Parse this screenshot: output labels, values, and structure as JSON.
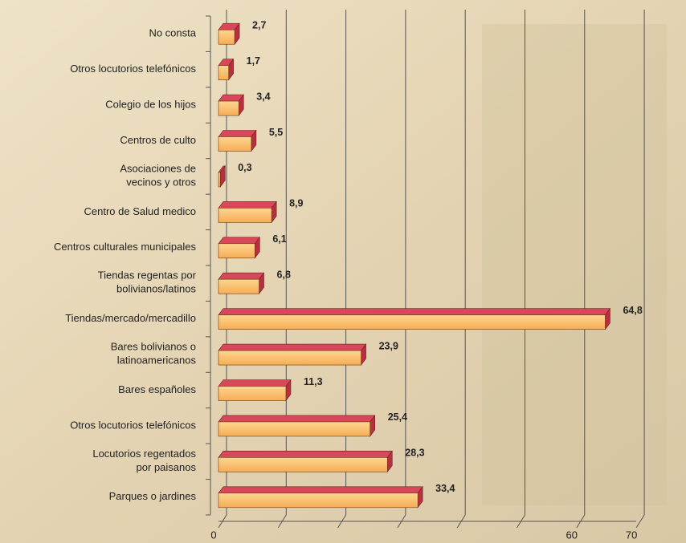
{
  "chart_data": {
    "type": "bar",
    "orientation": "horizontal",
    "three_d": true,
    "categories": [
      "No consta",
      "Otros locutorios telefónicos",
      "Colegio de los hijos",
      "Centros de culto",
      "Asociaciones de vecinos y otros",
      "Centro de Salud medico",
      "Centros culturales municipales",
      "Tiendas regentas por bolivianos/latinos",
      "Tiendas/mercado/mercadillo",
      "Bares bolivianos o latinoamericanos",
      "Bares españoles",
      "Otros locutorios telefónicos",
      "Locutorios regentados por paisanos",
      "Parques o jardines"
    ],
    "values": [
      2.7,
      1.7,
      3.4,
      5.5,
      0.3,
      8.9,
      6.1,
      6.8,
      64.8,
      23.9,
      11.3,
      25.4,
      28.3,
      33.4
    ],
    "value_labels": [
      "2,7",
      "1,7",
      "3,4",
      "5,5",
      "0,3",
      "8,9",
      "6,1",
      "6,8",
      "64,8",
      "23,9",
      "11,3",
      "25,4",
      "28,3",
      "33,4"
    ],
    "color": "#fbbf6c",
    "top_color": "#d9485a",
    "xlim": [
      0,
      70
    ],
    "xticks": [
      0,
      {
        "value": 10,
        "label": null
      },
      {
        "value": 20,
        "label": null
      },
      {
        "value": 30,
        "label": null
      },
      {
        "value": 40,
        "label": null
      },
      {
        "value": 50,
        "label": null
      },
      60,
      70
    ],
    "grid": true
  }
}
